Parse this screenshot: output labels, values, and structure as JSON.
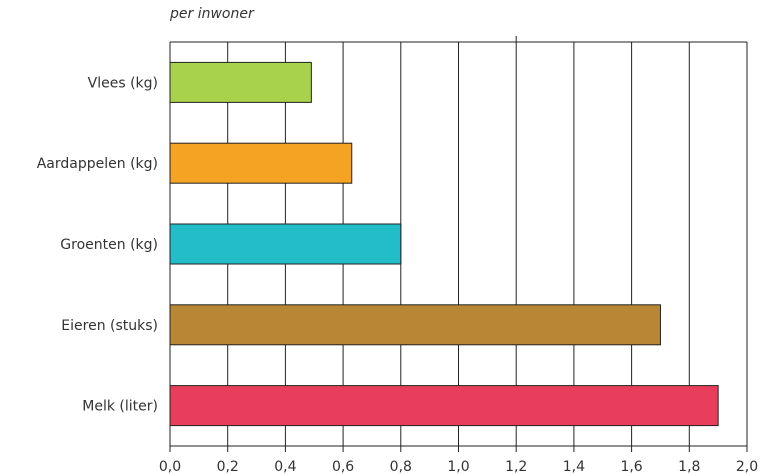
{
  "chart_data": {
    "type": "bar",
    "orientation": "horizontal",
    "subtitle": "per inwoner",
    "categories": [
      "Vlees (kg)",
      "Aardappelen (kg)",
      "Groenten (kg)",
      "Eieren (stuks)",
      "Melk (liter)"
    ],
    "values": [
      0.49,
      0.63,
      0.8,
      1.7,
      1.9
    ],
    "colors": [
      "#a8d14c",
      "#f4a323",
      "#22bdc9",
      "#b78734",
      "#e83e5b"
    ],
    "xticks": [
      "0,0",
      "0,2",
      "0,4",
      "0,6",
      "0,8",
      "1,0",
      "1,2",
      "1,4",
      "1,6",
      "1,8",
      "2,0"
    ],
    "xlim": [
      0,
      2
    ],
    "grid": true
  }
}
